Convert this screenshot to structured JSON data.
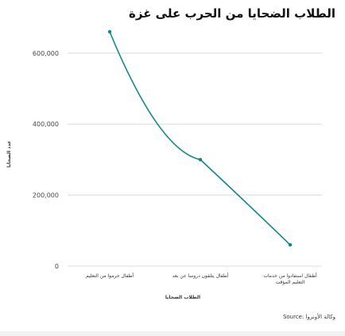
{
  "chart_data": {
    "type": "line",
    "title": "الطلاب الضحايا من الحرب على غزة",
    "xlabel": "الطلاب الضحايا",
    "ylabel": "عدد الضحايا",
    "categories": [
      "أطفال حرموا من التعليم",
      "أطفال يتلقون دروسا عن بعد",
      "أطفال استفادوا من خدمات التعليم المؤقت"
    ],
    "series": [
      {
        "values": [
          660000,
          300000,
          60000
        ]
      }
    ],
    "yticks": [
      "0",
      "200,000",
      "400,000",
      "600,000"
    ],
    "ylim": [
      0,
      660000
    ],
    "grid": true,
    "line_color": "#10868a",
    "source": "Source: وكالة الأونروا"
  }
}
